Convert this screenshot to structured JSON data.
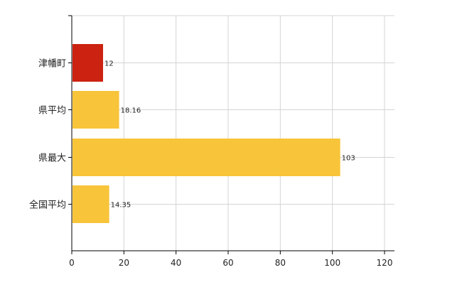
{
  "chart_data": {
    "type": "bar",
    "orientation": "horizontal",
    "categories": [
      "津幡町",
      "県平均",
      "県最大",
      "全国平均"
    ],
    "values": [
      12,
      18.16,
      103,
      14.35
    ],
    "data_labels": [
      "12",
      "18.16",
      "103",
      "14.35"
    ],
    "colors": [
      "#cc2211",
      "#f8c43a",
      "#f8c43a",
      "#f8c43a"
    ],
    "xlim": [
      0,
      120
    ],
    "x_ticks": [
      0,
      20,
      40,
      60,
      80,
      100,
      120
    ],
    "grid": true,
    "legend": "none",
    "title": "",
    "xlabel": "",
    "ylabel": ""
  }
}
